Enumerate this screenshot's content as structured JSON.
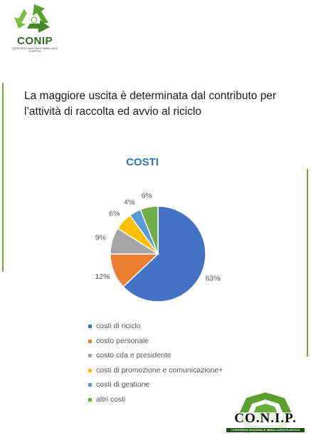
{
  "header": {
    "logo_text": "CONIP",
    "logo_subtext": "CONSORZIO NAZIONALE IMBALLAGGI PLASTICA"
  },
  "headline": "La maggiore uscita è determinata dal contributo per l’attività di raccolta ed avvio al riciclo",
  "footer_logo": {
    "text": "CO.N.I.P.",
    "subtext": "CONSORZIO NAZIONALE IMBALLAGGI PLASTICA"
  },
  "colors": {
    "accent_bar": "#6aaa3a",
    "title": "#2e74b5"
  },
  "chart_data": {
    "type": "pie",
    "title": "COSTI",
    "legend_position": "bottom",
    "slices": [
      {
        "name": "costi di riciclo",
        "value": 63,
        "label": "63%",
        "color": "#4472c4"
      },
      {
        "name": "costo personale",
        "value": 12,
        "label": "12%",
        "color": "#ed7d31"
      },
      {
        "name": "costo cda e presidente",
        "value": 9,
        "label": "9%",
        "color": "#a5a5a5"
      },
      {
        "name": "costi di promozione e comunicazione+",
        "value": 6,
        "label": "6%",
        "color": "#ffc000"
      },
      {
        "name": "costi di gestione",
        "value": 4,
        "label": "4%",
        "color": "#5b9bd5"
      },
      {
        "name": "altri costi",
        "value": 6,
        "label": "6%",
        "color": "#70ad47"
      }
    ]
  }
}
